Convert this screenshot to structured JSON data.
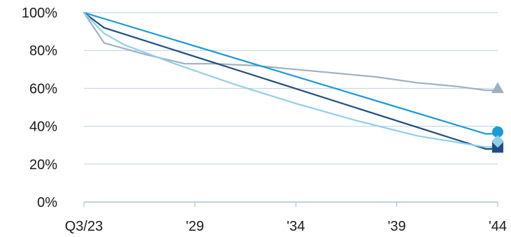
{
  "chart_data": {
    "type": "line",
    "title": "",
    "xlabel": "",
    "ylabel": "",
    "x_tick_labels": [
      "Q3/23",
      "'29",
      "'34",
      "'39",
      "'44"
    ],
    "x_tick_positions": [
      2023.5,
      2029,
      2034,
      2039,
      2044
    ],
    "y_tick_labels": [
      "0%",
      "20%",
      "40%",
      "60%",
      "80%",
      "100%"
    ],
    "y_tick_values": [
      0,
      20,
      40,
      60,
      80,
      100
    ],
    "xlim": [
      2023.5,
      2044
    ],
    "ylim": [
      0,
      100
    ],
    "grid": "horizontal",
    "legend": "none",
    "series": [
      {
        "color": "#9fb1c1",
        "marker": "triangle",
        "x": [
          2023.5,
          2024.5,
          2026.5,
          2028.5,
          2030,
          2032,
          2034,
          2036,
          2038,
          2040,
          2042,
          2043.4,
          2044
        ],
        "y": [
          100,
          84,
          78,
          73,
          73,
          72,
          70,
          68,
          66,
          63,
          61,
          59,
          59
        ]
      },
      {
        "color": "#1a9ad6",
        "marker": "circle",
        "x": [
          2023.5,
          2044
        ],
        "y": [
          100,
          36
        ],
        "x_extra": [
          2043.4
        ],
        "y_extra": [
          36
        ]
      },
      {
        "color": "#1f4e82",
        "marker": "square",
        "x": [
          2023.5,
          2024.5,
          2043.4,
          2044
        ],
        "y": [
          100,
          92,
          28,
          28
        ]
      },
      {
        "color": "#8fd0ea",
        "marker": "diamond",
        "x": [
          2023.5,
          2024.5,
          2025.5,
          2028,
          2031,
          2034,
          2037,
          2040,
          2043.4,
          2044
        ],
        "y": [
          100,
          89,
          83,
          73,
          62,
          52,
          43,
          35,
          29,
          29
        ]
      }
    ],
    "end_markers": [
      {
        "series": 0,
        "x": 2044,
        "y": 60,
        "shape": "triangle",
        "color": "#9fb1c1"
      },
      {
        "series": 1,
        "x": 2044,
        "y": 37,
        "shape": "circle",
        "color": "#1a9ad6"
      },
      {
        "series": 2,
        "x": 2044,
        "y": 29,
        "shape": "square",
        "color": "#1f4e82"
      },
      {
        "series": 3,
        "x": 2044,
        "y": 32,
        "shape": "diamond",
        "color": "#8fd0ea"
      }
    ],
    "colors": {
      "grid": "#b9d3e6",
      "axis": "#9bb7cc",
      "text": "#1a1a1a"
    }
  }
}
